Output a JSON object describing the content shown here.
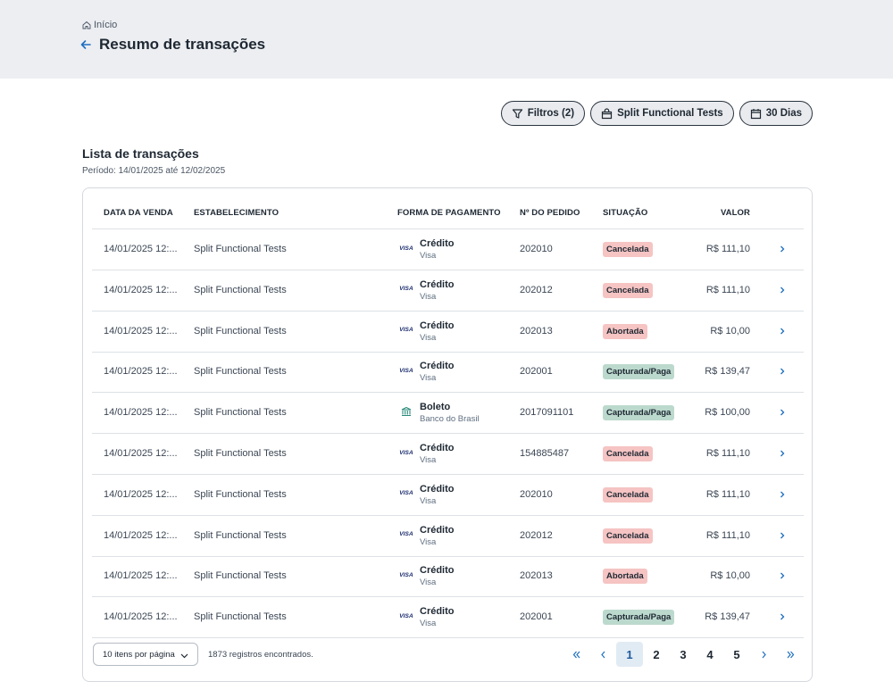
{
  "breadcrumb": {
    "label": "Início"
  },
  "header": {
    "title": "Resumo de transações"
  },
  "filters": {
    "filter_label": "Filtros (2)",
    "store_label": "Split Functional Tests",
    "period_label": "30 Dias"
  },
  "list": {
    "title": "Lista de transações",
    "period": "Período: 14/01/2025 até 12/02/2025"
  },
  "table": {
    "headers": {
      "date": "DATA DA VENDA",
      "establishment": "ESTABELECIMENTO",
      "payment": "FORMA DE PAGAMENTO",
      "order": "Nº DO PEDIDO",
      "status": "SITUAÇÃO",
      "value": "VALOR"
    },
    "rows": [
      {
        "date": "14/01/2025 12:...",
        "establishment": "Split Functional Tests",
        "pay_icon": "visa-icon",
        "pay_icon_text": "VISA",
        "payment": "Crédito",
        "payment_sub": "Visa",
        "order": "202010",
        "status": "Cancelada",
        "status_color": "#f5c4c3",
        "value": "R$ 111,10"
      },
      {
        "date": "14/01/2025 12:...",
        "establishment": "Split Functional Tests",
        "pay_icon": "visa-icon",
        "pay_icon_text": "VISA",
        "payment": "Crédito",
        "payment_sub": "Visa",
        "order": "202012",
        "status": "Cancelada",
        "status_color": "#f5c4c3",
        "value": "R$ 111,10"
      },
      {
        "date": "14/01/2025 12:...",
        "establishment": "Split Functional Tests",
        "pay_icon": "visa-icon",
        "pay_icon_text": "VISA",
        "payment": "Crédito",
        "payment_sub": "Visa",
        "order": "202013",
        "status": "Abortada",
        "status_color": "#f5c4c3",
        "value": "R$ 10,00"
      },
      {
        "date": "14/01/2025 12:...",
        "establishment": "Split Functional Tests",
        "pay_icon": "visa-icon",
        "pay_icon_text": "VISA",
        "payment": "Crédito",
        "payment_sub": "Visa",
        "order": "202001",
        "status": "Capturada/Paga",
        "status_color": "#bcd9cd",
        "value": "R$ 139,47"
      },
      {
        "date": "14/01/2025 12:...",
        "establishment": "Split Functional Tests",
        "pay_icon": "bank-icon",
        "pay_icon_text": "",
        "payment": "Boleto",
        "payment_sub": "Banco do Brasil",
        "order": "2017091101",
        "status": "Capturada/Paga",
        "status_color": "#bcd9cd",
        "value": "R$ 100,00"
      },
      {
        "date": "14/01/2025 12:...",
        "establishment": "Split Functional Tests",
        "pay_icon": "visa-icon",
        "pay_icon_text": "VISA",
        "payment": "Crédito",
        "payment_sub": "Visa",
        "order": "154885487",
        "status": "Cancelada",
        "status_color": "#f5c4c3",
        "value": "R$ 111,10"
      },
      {
        "date": "14/01/2025 12:...",
        "establishment": "Split Functional Tests",
        "pay_icon": "visa-icon",
        "pay_icon_text": "VISA",
        "payment": "Crédito",
        "payment_sub": "Visa",
        "order": "202010",
        "status": "Cancelada",
        "status_color": "#f5c4c3",
        "value": "R$ 111,10"
      },
      {
        "date": "14/01/2025 12:...",
        "establishment": "Split Functional Tests",
        "pay_icon": "visa-icon",
        "pay_icon_text": "VISA",
        "payment": "Crédito",
        "payment_sub": "Visa",
        "order": "202012",
        "status": "Cancelada",
        "status_color": "#f5c4c3",
        "value": "R$ 111,10"
      },
      {
        "date": "14/01/2025 12:...",
        "establishment": "Split Functional Tests",
        "pay_icon": "visa-icon",
        "pay_icon_text": "VISA",
        "payment": "Crédito",
        "payment_sub": "Visa",
        "order": "202013",
        "status": "Abortada",
        "status_color": "#f5c4c3",
        "value": "R$ 10,00"
      },
      {
        "date": "14/01/2025 12:...",
        "establishment": "Split Functional Tests",
        "pay_icon": "visa-icon",
        "pay_icon_text": "VISA",
        "payment": "Crédito",
        "payment_sub": "Visa",
        "order": "202001",
        "status": "Capturada/Paga",
        "status_color": "#bcd9cd",
        "value": "R$ 139,47"
      }
    ]
  },
  "footer": {
    "per_page": "10 itens por página",
    "records": "1873 registros encontrados.",
    "pages": [
      "1",
      "2",
      "3",
      "4",
      "5"
    ],
    "current_page": "1"
  },
  "colors": {
    "accent": "#1e6fbf",
    "status_red": "#f5c4c3",
    "status_green": "#bcd9cd"
  }
}
